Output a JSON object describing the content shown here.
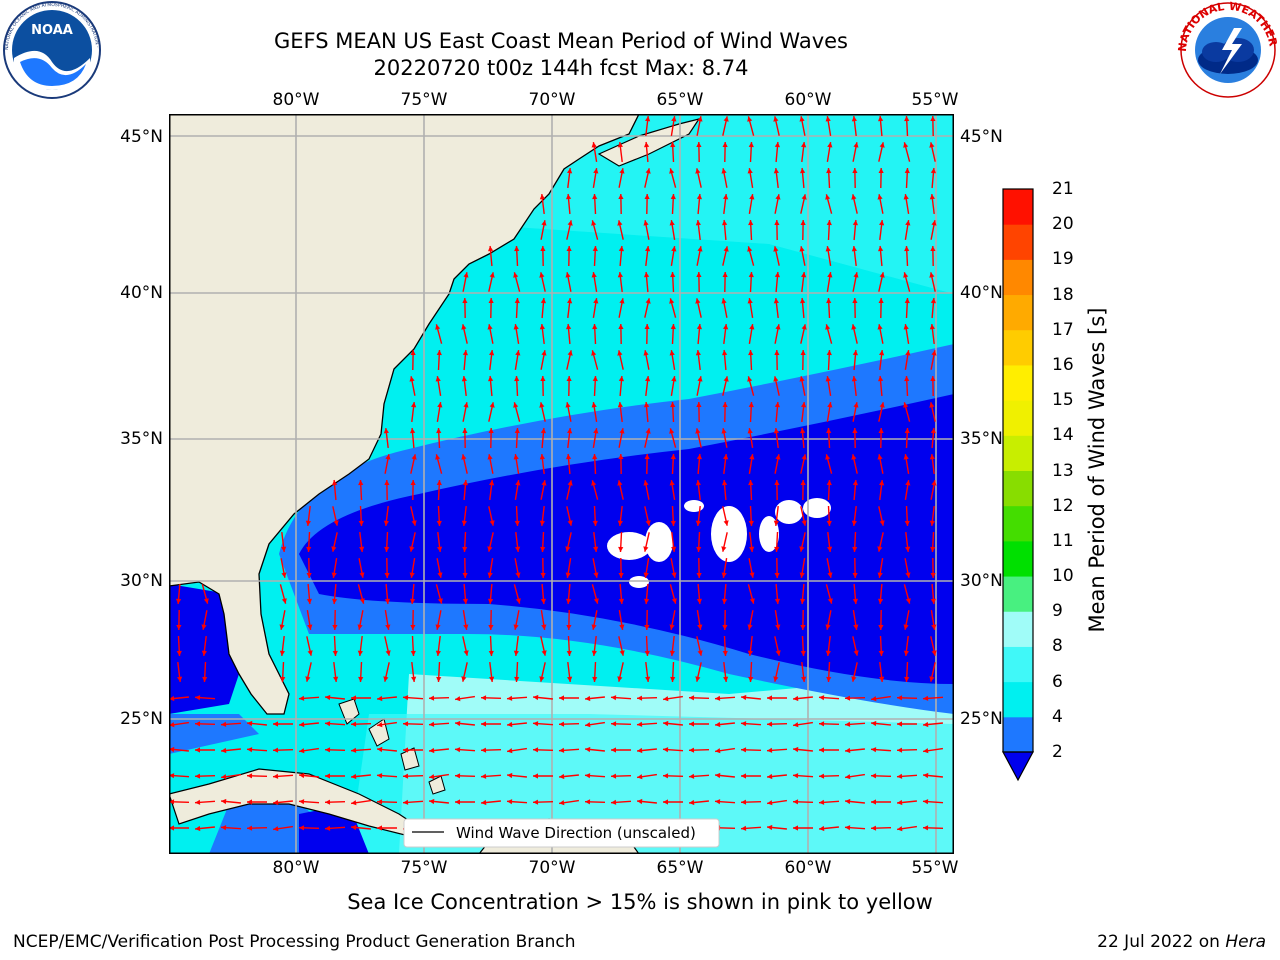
{
  "header": {
    "title_line1": "GEFS MEAN US East Coast Mean Period of Wind Waves",
    "title_line2": "20220720 t00z 144h fcst   Max: 8.74"
  },
  "logos": {
    "noaa_text": "NOAA",
    "noaa_ring": "NATIONAL OCEANIC AND ATMOSPHERIC ADMINISTRATION · U.S. DEPARTMENT OF COMMERCE",
    "nws_ring": "NATIONAL WEATHER SERVICE"
  },
  "map": {
    "lon_ticks": [
      "80°W",
      "75°W",
      "70°W",
      "65°W",
      "60°W",
      "55°W"
    ],
    "lat_ticks": [
      "45°N",
      "40°N",
      "35°N",
      "30°N",
      "25°N"
    ],
    "legend_label": "Wind Wave Direction (unscaled)",
    "colors": {
      "land": "#efecdc",
      "arrow": "#ff0000",
      "grid": "#b0b0b0"
    }
  },
  "colorbar": {
    "label": "Mean Period of Wind Waves [s]",
    "ticks": [
      "2",
      "4",
      "6",
      "8",
      "9",
      "10",
      "11",
      "12",
      "13",
      "14",
      "15",
      "16",
      "17",
      "18",
      "19",
      "20",
      "21"
    ],
    "colors": [
      "#0000ee",
      "#1e78ff",
      "#00f0f0",
      "#40f8f8",
      "#a0fcf8",
      "#48f080",
      "#00e000",
      "#44dd00",
      "#88dd00",
      "#c8ee00",
      "#f0f000",
      "#ffee00",
      "#ffcc00",
      "#ffaa00",
      "#ff8800",
      "#ff4400",
      "#ff1100",
      "#ff0000"
    ]
  },
  "notes": {
    "sea_ice": "Sea Ice Concentration > 15% is shown in pink to yellow"
  },
  "footer": {
    "left": "NCEP/EMC/Verification Post Processing Product Generation Branch",
    "date": "22 Jul 2022 on ",
    "machine": "Hera"
  }
}
